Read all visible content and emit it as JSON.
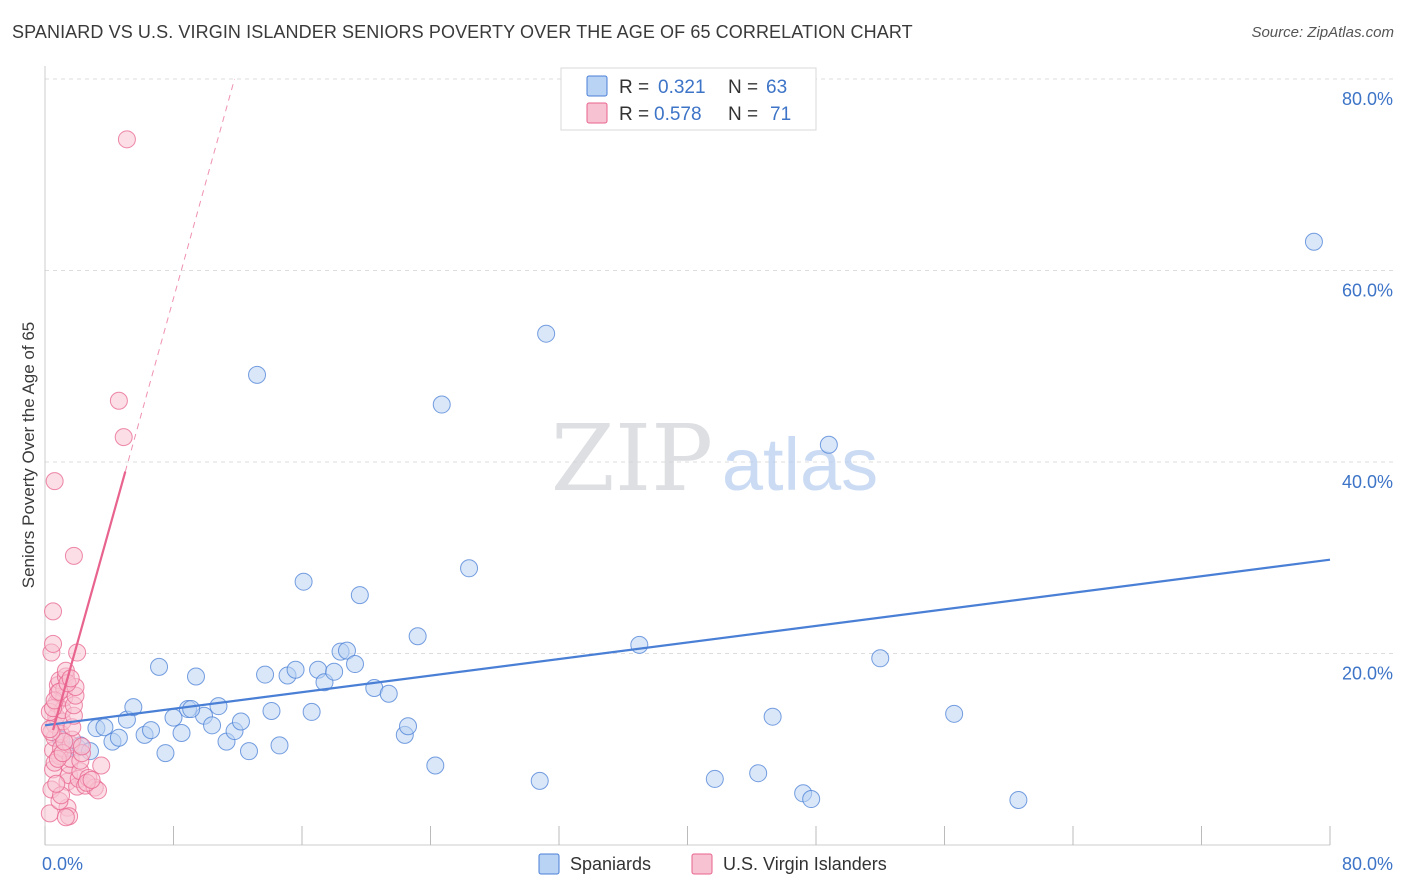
{
  "header": {
    "title": "SPANIARD VS U.S. VIRGIN ISLANDER SENIORS POVERTY OVER THE AGE OF 65 CORRELATION CHART",
    "source": "Source: ZipAtlas.com"
  },
  "watermark": {
    "zip": "ZIP",
    "atlas": "atlas"
  },
  "colors": {
    "blue": "#4a7fd6",
    "blue_fill": "#b9d3f4",
    "pink": "#e8638e",
    "pink_fill": "#f7c3d2",
    "tick": "#3d74c7",
    "grid": "#dddddd"
  },
  "chart_data": {
    "type": "scatter",
    "title": "SPANIARD VS U.S. VIRGIN ISLANDER SENIORS POVERTY OVER THE AGE OF 65 CORRELATION CHART",
    "xlabel": "",
    "ylabel": "Seniors Poverty Over the Age of 65",
    "xlim": [
      0,
      80
    ],
    "ylim": [
      0,
      80
    ],
    "x_tick_labels": [
      "0.0%",
      "80.0%"
    ],
    "y_ticks": [
      20,
      40,
      60,
      80
    ],
    "y_tick_labels": [
      "20.0%",
      "40.0%",
      "60.0%",
      "80.0%"
    ],
    "grid": true,
    "legend": {
      "position": "top-center",
      "entries": [
        {
          "series": "Spaniards",
          "r_label": "R =",
          "r_value": "0.321",
          "n_label": "N =",
          "n_value": "63"
        },
        {
          "series": "U.S. Virgin Islanders",
          "r_label": "R =",
          "r_value": "0.578",
          "n_label": "N =",
          "n_value": "71"
        }
      ]
    },
    "bottom_legend": [
      "Spaniards",
      "U.S. Virgin Islanders"
    ],
    "series": [
      {
        "name": "Spaniards",
        "color": "#4a7fd6",
        "trend": {
          "x0": 0,
          "y0": 12.5,
          "x1": 80,
          "y1": 29.8
        },
        "points": [
          [
            1.0,
            11.0
          ],
          [
            1.3,
            9.9
          ],
          [
            2.0,
            10.2
          ],
          [
            2.2,
            10.4
          ],
          [
            2.8,
            9.8
          ],
          [
            3.2,
            12.2
          ],
          [
            3.7,
            12.3
          ],
          [
            4.2,
            10.8
          ],
          [
            4.6,
            11.2
          ],
          [
            5.1,
            13.1
          ],
          [
            5.5,
            14.4
          ],
          [
            6.2,
            11.5
          ],
          [
            6.6,
            12.0
          ],
          [
            7.1,
            18.6
          ],
          [
            7.5,
            9.6
          ],
          [
            8.0,
            13.3
          ],
          [
            8.5,
            11.7
          ],
          [
            8.9,
            14.2
          ],
          [
            9.4,
            17.6
          ],
          [
            9.9,
            13.5
          ],
          [
            10.4,
            12.5
          ],
          [
            10.8,
            14.5
          ],
          [
            11.3,
            10.8
          ],
          [
            11.8,
            11.9
          ],
          [
            12.2,
            12.9
          ],
          [
            12.7,
            9.8
          ],
          [
            13.2,
            49.1
          ],
          [
            13.7,
            17.8
          ],
          [
            14.1,
            14.0
          ],
          [
            14.6,
            10.4
          ],
          [
            15.1,
            17.7
          ],
          [
            15.6,
            18.3
          ],
          [
            16.1,
            27.5
          ],
          [
            16.6,
            13.9
          ],
          [
            17.0,
            18.3
          ],
          [
            17.4,
            17.0
          ],
          [
            18.0,
            18.1
          ],
          [
            18.4,
            20.2
          ],
          [
            18.8,
            20.3
          ],
          [
            19.3,
            18.9
          ],
          [
            19.6,
            26.1
          ],
          [
            20.5,
            16.4
          ],
          [
            21.4,
            15.8
          ],
          [
            22.4,
            11.5
          ],
          [
            22.6,
            12.4
          ],
          [
            23.2,
            21.8
          ],
          [
            24.3,
            8.3
          ],
          [
            24.7,
            46.0
          ],
          [
            26.4,
            28.9
          ],
          [
            30.8,
            6.7
          ],
          [
            31.2,
            53.4
          ],
          [
            37.0,
            20.9
          ],
          [
            41.7,
            6.9
          ],
          [
            44.4,
            7.5
          ],
          [
            45.3,
            13.4
          ],
          [
            47.2,
            5.4
          ],
          [
            47.7,
            4.8
          ],
          [
            48.8,
            41.8
          ],
          [
            52.0,
            19.5
          ],
          [
            56.6,
            13.7
          ],
          [
            60.6,
            4.7
          ],
          [
            79.0,
            63.0
          ],
          [
            9.1,
            14.2
          ]
        ]
      },
      {
        "name": "U.S. Virgin Islanders",
        "color": "#e8638e",
        "trend": {
          "x0": 0.5,
          "y0": 12.0,
          "x1": 5.0,
          "y1": 39.0
        },
        "trend_dashed": {
          "x0": 5.0,
          "y0": 39.0,
          "x1": 11.8,
          "y1": 80.0
        },
        "points": [
          [
            0.3,
            3.3
          ],
          [
            0.4,
            5.8
          ],
          [
            0.5,
            7.9
          ],
          [
            0.5,
            9.9
          ],
          [
            0.6,
            11.2
          ],
          [
            0.6,
            12.6
          ],
          [
            0.7,
            13.4
          ],
          [
            0.7,
            14.8
          ],
          [
            0.8,
            15.9
          ],
          [
            0.8,
            16.7
          ],
          [
            0.9,
            17.2
          ],
          [
            0.4,
            20.1
          ],
          [
            0.5,
            21.0
          ],
          [
            0.5,
            24.4
          ],
          [
            0.6,
            38.0
          ],
          [
            0.9,
            9.3
          ],
          [
            1.0,
            10.1
          ],
          [
            1.0,
            11.6
          ],
          [
            1.1,
            12.9
          ],
          [
            1.1,
            14.1
          ],
          [
            1.2,
            15.4
          ],
          [
            1.2,
            16.3
          ],
          [
            1.3,
            17.6
          ],
          [
            1.3,
            18.2
          ],
          [
            1.4,
            6.6
          ],
          [
            1.5,
            7.3
          ],
          [
            1.5,
            8.4
          ],
          [
            1.6,
            9.0
          ],
          [
            1.6,
            10.5
          ],
          [
            1.7,
            11.0
          ],
          [
            1.7,
            12.3
          ],
          [
            1.8,
            13.5
          ],
          [
            1.8,
            14.6
          ],
          [
            1.9,
            15.6
          ],
          [
            1.9,
            16.5
          ],
          [
            2.0,
            20.1
          ],
          [
            2.0,
            6.1
          ],
          [
            2.1,
            6.9
          ],
          [
            2.2,
            7.7
          ],
          [
            2.2,
            8.8
          ],
          [
            2.3,
            9.6
          ],
          [
            2.3,
            10.3
          ],
          [
            1.4,
            3.9
          ],
          [
            1.5,
            3.0
          ],
          [
            2.5,
            6.2
          ],
          [
            2.7,
            7.0
          ],
          [
            3.1,
            6.0
          ],
          [
            3.3,
            5.7
          ],
          [
            3.5,
            8.3
          ],
          [
            4.6,
            46.4
          ],
          [
            4.9,
            42.6
          ],
          [
            5.1,
            73.7
          ],
          [
            1.8,
            30.2
          ],
          [
            0.9,
            4.6
          ],
          [
            1.0,
            5.2
          ],
          [
            0.7,
            6.4
          ],
          [
            0.6,
            8.6
          ],
          [
            0.8,
            9.0
          ],
          [
            1.1,
            9.6
          ],
          [
            1.2,
            10.8
          ],
          [
            0.4,
            11.8
          ],
          [
            0.3,
            12.1
          ],
          [
            0.3,
            13.9
          ],
          [
            0.5,
            14.3
          ],
          [
            0.6,
            15.1
          ],
          [
            0.9,
            16.0
          ],
          [
            1.4,
            16.9
          ],
          [
            1.6,
            17.4
          ],
          [
            2.6,
            6.5
          ],
          [
            2.9,
            6.8
          ],
          [
            1.3,
            2.9
          ]
        ]
      }
    ]
  }
}
